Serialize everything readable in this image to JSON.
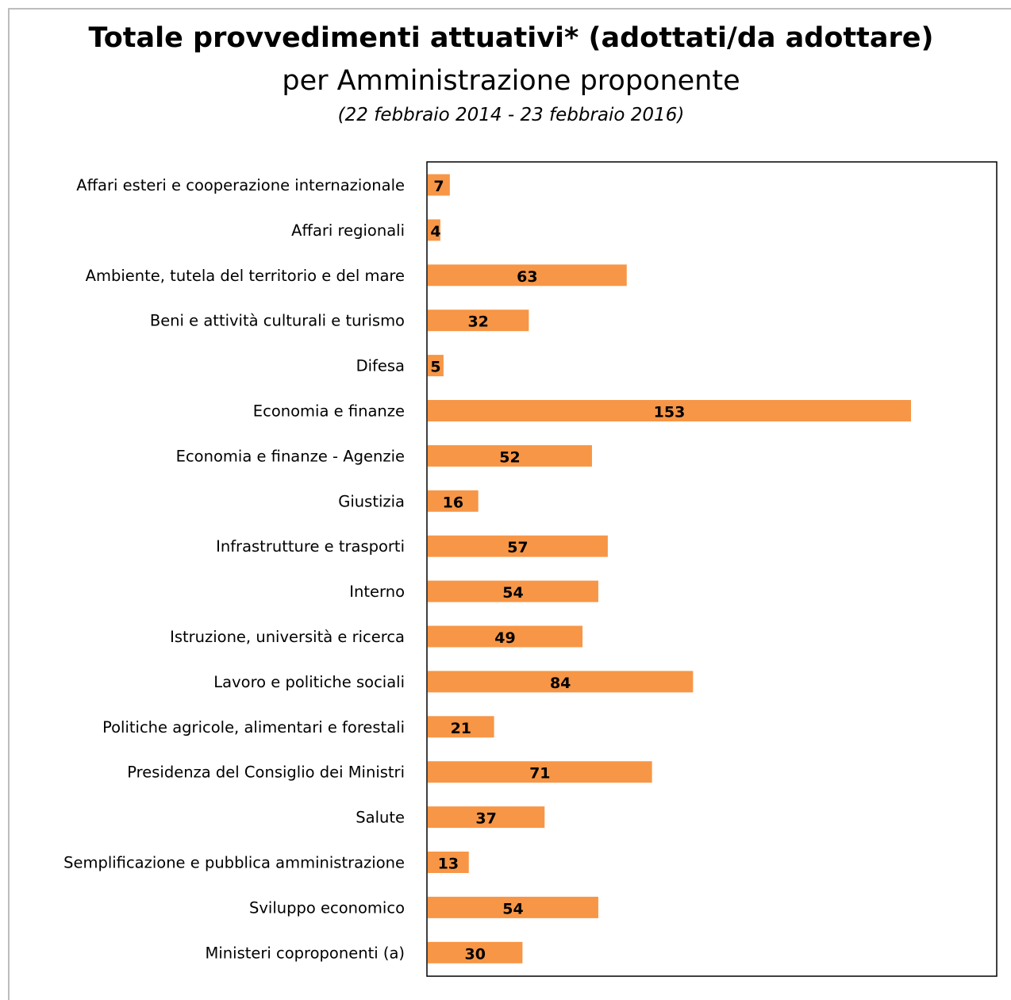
{
  "chart_data": {
    "type": "bar",
    "orientation": "horizontal",
    "title": "Totale provvedimenti attuativi* (adottati/da adottare)",
    "subtitle": "per Amministrazione proponente",
    "period": "(22 febbraio 2014 - 23 febbraio 2016)",
    "categories": [
      "Affari esteri e cooperazione internazionale",
      "Affari regionali",
      "Ambiente, tutela del territorio e del mare",
      "Beni e attività culturali e turismo",
      "Difesa",
      "Economia e finanze",
      "Economia e finanze - Agenzie",
      "Giustizia",
      "Infrastrutture e trasporti",
      "Interno",
      "Istruzione, università e ricerca",
      "Lavoro e politiche sociali",
      "Politiche agricole, alimentari e forestali",
      "Presidenza del Consiglio dei Ministri",
      "Salute",
      "Semplificazione e pubblica amministrazione",
      "Sviluppo economico",
      "Ministeri coproponenti (a)"
    ],
    "values": [
      7,
      4,
      63,
      32,
      5,
      153,
      52,
      16,
      57,
      54,
      49,
      84,
      21,
      71,
      37,
      13,
      54,
      30
    ],
    "xlim": [
      0,
      180
    ],
    "grid": false,
    "legend": "none",
    "data_labels": true,
    "bar_color": "#f79646",
    "axis_color": "#000000"
  }
}
